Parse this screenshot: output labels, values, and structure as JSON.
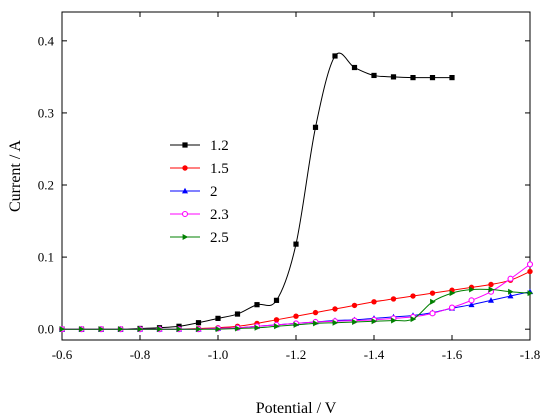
{
  "chart_data": {
    "type": "line",
    "title": "",
    "xlabel": "Potential / V",
    "ylabel": "Current / A",
    "xlim": [
      -0.6,
      -1.8
    ],
    "ylim": [
      -0.015,
      0.44
    ],
    "xticks": [
      -0.6,
      -0.8,
      -1.0,
      -1.2,
      -1.4,
      -1.6,
      -1.8
    ],
    "xtick_labels": [
      "-0.6",
      "-0.8",
      "-1.0",
      "-1.2",
      "-1.4",
      "-1.6",
      "-1.8"
    ],
    "yticks": [
      0.0,
      0.1,
      0.2,
      0.3,
      0.4
    ],
    "ytick_labels": [
      "0.0",
      "0.1",
      "0.2",
      "0.3",
      "0.4"
    ],
    "grid": false,
    "legend_position": "center-left",
    "series": [
      {
        "name": "1.2",
        "color": "#000000",
        "marker": "square",
        "x": [
          -0.6,
          -0.65,
          -0.7,
          -0.75,
          -0.8,
          -0.85,
          -0.9,
          -0.95,
          -1.0,
          -1.05,
          -1.1,
          -1.15,
          -1.2,
          -1.25,
          -1.3,
          -1.35,
          -1.4,
          -1.45,
          -1.5,
          -1.55,
          -1.6
        ],
        "y": [
          0.0,
          0.0,
          0.0,
          0.0,
          0.001,
          0.002,
          0.004,
          0.009,
          0.015,
          0.021,
          0.034,
          0.04,
          0.118,
          0.28,
          0.379,
          0.363,
          0.352,
          0.35,
          0.349,
          0.349,
          0.349
        ]
      },
      {
        "name": "1.5",
        "color": "#ff0000",
        "marker": "circle",
        "x": [
          -0.6,
          -0.65,
          -0.7,
          -0.75,
          -0.8,
          -0.85,
          -0.9,
          -0.95,
          -1.0,
          -1.05,
          -1.1,
          -1.15,
          -1.2,
          -1.25,
          -1.3,
          -1.35,
          -1.4,
          -1.45,
          -1.5,
          -1.55,
          -1.6,
          -1.65,
          -1.7,
          -1.75,
          -1.8
        ],
        "y": [
          0.0,
          0.0,
          0.0,
          0.0,
          0.0,
          0.0,
          0.0,
          0.001,
          0.002,
          0.004,
          0.008,
          0.013,
          0.018,
          0.023,
          0.028,
          0.033,
          0.038,
          0.042,
          0.046,
          0.05,
          0.054,
          0.058,
          0.062,
          0.068,
          0.08
        ]
      },
      {
        "name": "2",
        "color": "#0000ff",
        "marker": "triangle",
        "x": [
          -0.6,
          -0.65,
          -0.7,
          -0.75,
          -0.8,
          -0.85,
          -0.9,
          -0.95,
          -1.0,
          -1.05,
          -1.1,
          -1.15,
          -1.2,
          -1.25,
          -1.3,
          -1.35,
          -1.4,
          -1.45,
          -1.5,
          -1.55,
          -1.6,
          -1.65,
          -1.7,
          -1.75,
          -1.8
        ],
        "y": [
          0.0,
          0.0,
          0.0,
          0.0,
          0.0,
          0.0,
          0.0,
          0.0,
          0.001,
          0.002,
          0.004,
          0.006,
          0.008,
          0.01,
          0.012,
          0.013,
          0.015,
          0.017,
          0.019,
          0.023,
          0.029,
          0.034,
          0.04,
          0.046,
          0.052
        ]
      },
      {
        "name": "2.3",
        "color": "#ff00ff",
        "marker": "circle-open",
        "x": [
          -0.6,
          -0.65,
          -0.7,
          -0.75,
          -0.8,
          -0.85,
          -0.9,
          -0.95,
          -1.0,
          -1.05,
          -1.1,
          -1.15,
          -1.2,
          -1.25,
          -1.3,
          -1.35,
          -1.4,
          -1.45,
          -1.5,
          -1.55,
          -1.6,
          -1.65,
          -1.7,
          -1.75,
          -1.8
        ],
        "y": [
          0.0,
          0.0,
          0.0,
          0.0,
          0.0,
          0.0,
          0.0,
          0.0,
          0.001,
          0.002,
          0.004,
          0.006,
          0.008,
          0.01,
          0.011,
          0.012,
          0.013,
          0.015,
          0.017,
          0.022,
          0.03,
          0.04,
          0.052,
          0.07,
          0.09
        ]
      },
      {
        "name": "2.5",
        "color": "#008000",
        "marker": "triangle-right",
        "x": [
          -0.6,
          -0.65,
          -0.7,
          -0.75,
          -0.8,
          -0.85,
          -0.9,
          -0.95,
          -1.0,
          -1.05,
          -1.1,
          -1.15,
          -1.2,
          -1.25,
          -1.3,
          -1.35,
          -1.4,
          -1.45,
          -1.5,
          -1.55,
          -1.6,
          -1.65,
          -1.7,
          -1.75,
          -1.8
        ],
        "y": [
          0.0,
          0.0,
          0.0,
          0.0,
          0.0,
          0.0,
          0.0,
          0.0,
          0.0,
          0.001,
          0.002,
          0.004,
          0.006,
          0.008,
          0.009,
          0.01,
          0.011,
          0.012,
          0.014,
          0.038,
          0.05,
          0.055,
          0.055,
          0.052,
          0.05
        ]
      }
    ]
  }
}
